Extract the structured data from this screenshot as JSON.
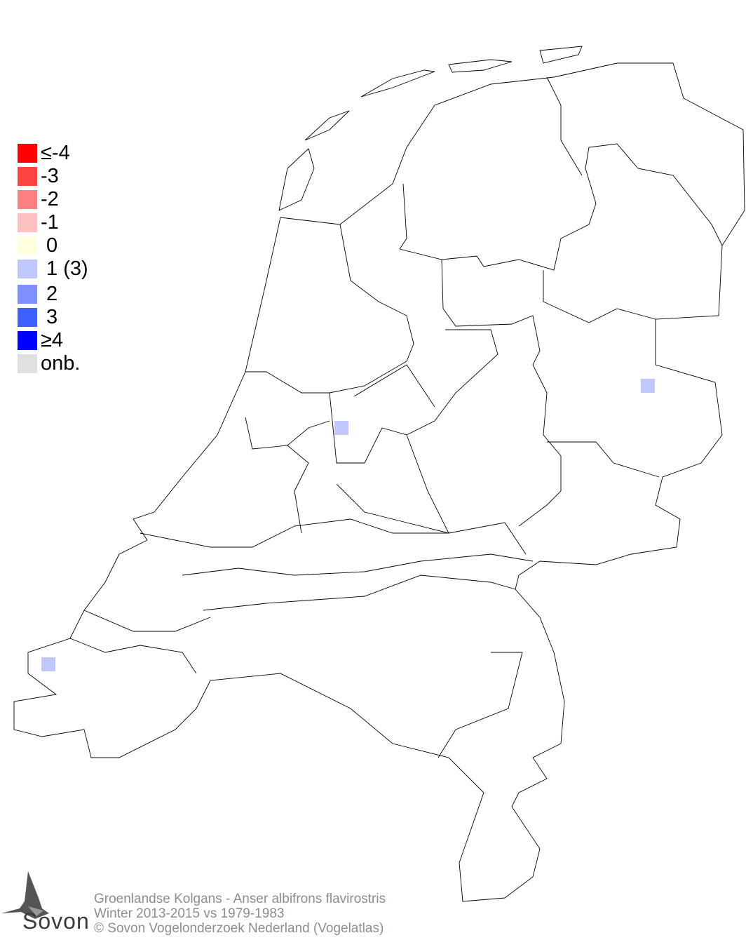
{
  "legend": {
    "items": [
      {
        "label": "≤-4",
        "color": "#ff0000"
      },
      {
        "label": "-3",
        "color": "#ff4444"
      },
      {
        "label": "-2",
        "color": "#ff8080"
      },
      {
        "label": "-1",
        "color": "#ffc0c0"
      },
      {
        "label": " 0",
        "color": "#ffffe0"
      },
      {
        "label": " 1 (3)",
        "color": "#c0c8ff"
      },
      {
        "label": " 2",
        "color": "#8090ff"
      },
      {
        "label": " 3",
        "color": "#4060ff"
      },
      {
        "label": "≥4",
        "color": "#0000ff"
      },
      {
        "label": "onb.",
        "color": "#e0e0e0"
      }
    ]
  },
  "map": {
    "cells": [
      {
        "value": 1,
        "color": "#c0c8ff"
      },
      {
        "value": 1,
        "color": "#c0c8ff"
      },
      {
        "value": 1,
        "color": "#c0c8ff"
      }
    ]
  },
  "footer": {
    "species": "Groenlandse Kolgans - Anser albifrons flavirostris",
    "period": "Winter 2013-2015 vs 1979-1983",
    "copyright": "© Sovon Vogelonderzoek Nederland (Vogelatlas)"
  },
  "logo": {
    "text": "Sovon"
  }
}
